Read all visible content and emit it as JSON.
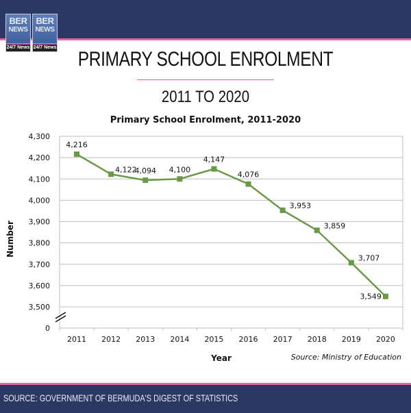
{
  "header": {
    "logo": {
      "line1": "BER",
      "line2": "NEWS",
      "tagline": "24/7 News"
    },
    "title": "PRIMARY SCHOOL ENROLMENT",
    "subtitle": "2011 TO 2020"
  },
  "colors": {
    "navy": "#2b3864",
    "pink": "#e9649b",
    "series": "#6a9a48",
    "grid": "#bfbfbf"
  },
  "chart_data": {
    "type": "line",
    "title": "Primary School Enrolment, 2011-2020",
    "xlabel": "Year",
    "ylabel": "Number",
    "categories": [
      "2011",
      "2012",
      "2013",
      "2014",
      "2015",
      "2016",
      "2017",
      "2018",
      "2019",
      "2020"
    ],
    "series": [
      {
        "name": "Primary School Enrolment",
        "values": [
          4216,
          4122,
          4094,
          4100,
          4147,
          4076,
          3953,
          3859,
          3707,
          3549
        ],
        "labels": [
          "4,216",
          "4,122",
          "4,094",
          "4,100",
          "4,147",
          "4,076",
          "3,953",
          "3,859",
          "3,707",
          "3,549"
        ]
      }
    ],
    "ylim": [
      3500,
      4300
    ],
    "axis_break": true,
    "yticks": [
      0,
      3500,
      3600,
      3700,
      3800,
      3900,
      4000,
      4100,
      4200,
      4300
    ],
    "ytick_labels": [
      "0",
      "3,500",
      "3,600",
      "3,700",
      "3,800",
      "3,900",
      "4,000",
      "4,100",
      "4,200",
      "4,300"
    ],
    "grid": true,
    "marker": "square",
    "annotation": "Source: Ministry of Education"
  },
  "footer": {
    "source": "SOURCE: GOVERNMENT OF BERMUDA'S DIGEST OF STATISTICS"
  }
}
